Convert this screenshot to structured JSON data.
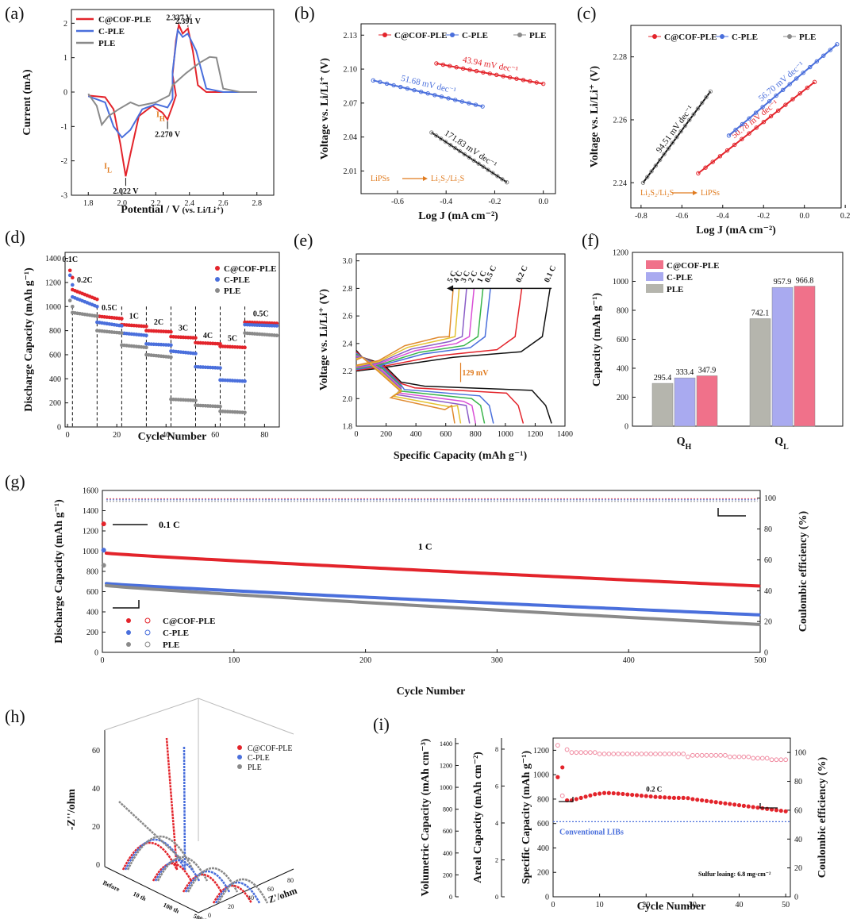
{
  "colors": {
    "cof": "#e3242b",
    "cple": "#4a6fdc",
    "ple": "#8a8a8a",
    "ann": "#e07b1f",
    "black": "#111111",
    "blue_dotted": "#4a6fdc"
  },
  "series_names": [
    "C@COF-PLE",
    "C-PLE",
    "PLE"
  ],
  "chart_data": [
    {
      "id": "a",
      "panel_label": "(a)",
      "type": "line",
      "xlabel": "Potential / V",
      "xlabel_suffix": " (vs. Li/Li⁺)",
      "ylabel": "Current (mA)",
      "xlim": [
        1.7,
        2.9
      ],
      "ylim": [
        -3,
        2.4
      ],
      "xticks": [
        1.8,
        2.0,
        2.2,
        2.4,
        2.6,
        2.8
      ],
      "yticks": [
        -3,
        -2,
        -1,
        0,
        1,
        2
      ],
      "series": [
        {
          "name": "C@COF-PLE",
          "points": [
            [
              1.8,
              -0.1
            ],
            [
              1.9,
              -0.15
            ],
            [
              1.95,
              -0.5
            ],
            [
              1.99,
              -1.5
            ],
            [
              2.022,
              -2.45
            ],
            [
              2.05,
              -1.8
            ],
            [
              2.1,
              -0.7
            ],
            [
              2.18,
              -0.4
            ],
            [
              2.24,
              -0.6
            ],
            [
              2.27,
              -0.8
            ],
            [
              2.3,
              -0.4
            ],
            [
              2.32,
              -0.1
            ],
            [
              2.3,
              0.5
            ],
            [
              2.32,
              1.5
            ],
            [
              2.337,
              1.95
            ],
            [
              2.36,
              1.7
            ],
            [
              2.391,
              1.85
            ],
            [
              2.42,
              1.2
            ],
            [
              2.45,
              0.2
            ],
            [
              2.5,
              0.0
            ],
            [
              2.6,
              0.0
            ],
            [
              2.8,
              0.0
            ]
          ]
        },
        {
          "name": "C-PLE",
          "points": [
            [
              1.8,
              -0.12
            ],
            [
              1.9,
              -0.3
            ],
            [
              1.95,
              -1.0
            ],
            [
              2.0,
              -1.32
            ],
            [
              2.05,
              -1.1
            ],
            [
              2.12,
              -0.5
            ],
            [
              2.2,
              -0.35
            ],
            [
              2.27,
              -0.45
            ],
            [
              2.3,
              -0.2
            ],
            [
              2.3,
              0.6
            ],
            [
              2.33,
              1.8
            ],
            [
              2.36,
              1.6
            ],
            [
              2.39,
              1.7
            ],
            [
              2.44,
              1.2
            ],
            [
              2.5,
              0.1
            ],
            [
              2.6,
              0.0
            ],
            [
              2.8,
              0.0
            ]
          ]
        },
        {
          "name": "PLE",
          "points": [
            [
              1.8,
              -0.05
            ],
            [
              1.85,
              -0.4
            ],
            [
              1.88,
              -0.95
            ],
            [
              1.92,
              -0.7
            ],
            [
              1.98,
              -0.5
            ],
            [
              2.05,
              -0.3
            ],
            [
              2.1,
              -0.4
            ],
            [
              2.2,
              -0.3
            ],
            [
              2.28,
              -0.1
            ],
            [
              2.3,
              0.2
            ],
            [
              2.38,
              0.55
            ],
            [
              2.46,
              0.85
            ],
            [
              2.52,
              1.02
            ],
            [
              2.56,
              1.0
            ],
            [
              2.6,
              0.1
            ],
            [
              2.7,
              0.0
            ],
            [
              2.8,
              0.0
            ]
          ]
        }
      ],
      "annotations": [
        {
          "text": "2.337 V",
          "x": 2.337,
          "y": 1.95
        },
        {
          "text": "2.391 V",
          "x": 2.391,
          "y": 1.85
        },
        {
          "text": "2.270 V",
          "x": 2.27,
          "y": -0.8
        },
        {
          "text": "2.022 V",
          "x": 2.022,
          "y": -2.45
        },
        {
          "text": "I",
          "sub": "L",
          "x": 1.95,
          "y": -2.0
        },
        {
          "text": "I",
          "sub": "H",
          "x": 2.26,
          "y": -0.5
        }
      ]
    },
    {
      "id": "b",
      "panel_label": "(b)",
      "type": "scatter",
      "xlabel": "Log J (mA cm⁻²)",
      "ylabel": "Voltage vs. Li/Li⁺ (V)",
      "xlim": [
        -0.75,
        0.05
      ],
      "ylim": [
        1.99,
        2.14
      ],
      "xticks": [
        -0.6,
        -0.4,
        -0.2,
        0.0
      ],
      "yticks": [
        2.01,
        2.04,
        2.07,
        2.1,
        2.13
      ],
      "series": [
        {
          "name": "C@COF-PLE",
          "x0": -0.44,
          "x1": 0.0,
          "y0": 2.105,
          "y1": 2.087,
          "slope_label": "43.94 mV dec⁻¹"
        },
        {
          "name": "C-PLE",
          "x0": -0.7,
          "x1": -0.25,
          "y0": 2.09,
          "y1": 2.067,
          "slope_label": "51.68 mV dec⁻¹"
        },
        {
          "name": "PLE",
          "x0": -0.46,
          "x1": -0.15,
          "y0": 2.044,
          "y1": 2.0,
          "slope_label": "171.83 mV dec⁻¹"
        }
      ],
      "note_from": "LiPSs",
      "note_to": "Li₂S₂/Li₂S"
    },
    {
      "id": "c",
      "panel_label": "(c)",
      "type": "scatter",
      "xlabel": "Log J (mA cm⁻²)",
      "ylabel": "Voltage vs. Li/Li⁺ (V)",
      "xlim": [
        -0.85,
        0.18
      ],
      "ylim": [
        2.232,
        2.29
      ],
      "xticks": [
        -0.8,
        -0.6,
        -0.4,
        -0.2,
        0.0,
        0.2
      ],
      "yticks": [
        2.24,
        2.26,
        2.28
      ],
      "series": [
        {
          "name": "C@COF-PLE",
          "x0": -0.52,
          "x1": 0.05,
          "y0": 2.243,
          "y1": 2.272,
          "slope_label": "50.78 mV dec⁻¹"
        },
        {
          "name": "C-PLE",
          "x0": -0.37,
          "x1": 0.16,
          "y0": 2.255,
          "y1": 2.284,
          "slope_label": "56.70 mV dec⁻¹"
        },
        {
          "name": "PLE",
          "x0": -0.79,
          "x1": -0.46,
          "y0": 2.24,
          "y1": 2.269,
          "slope_label": "94.51 mV dec⁻¹"
        }
      ],
      "note_from": "Li₂S₂/Li₂S",
      "note_to": "LiPSs"
    },
    {
      "id": "d",
      "panel_label": "(d)",
      "type": "scatter",
      "xlabel": "Cycle Number",
      "ylabel": "Discharge Capacity (mAh g⁻¹)",
      "xlim": [
        -1,
        86
      ],
      "ylim": [
        0,
        1450
      ],
      "xticks": [
        0,
        20,
        40,
        60,
        80
      ],
      "yticks": [
        0,
        200,
        400,
        600,
        800,
        1000,
        1200,
        1400
      ],
      "rates": [
        "0.1C",
        "0.2C",
        "0.5C",
        "1C",
        "2C",
        "3C",
        "4C",
        "5C",
        "0.5C"
      ],
      "rate_boundaries": [
        2,
        12,
        22,
        32,
        42,
        52,
        62,
        72
      ],
      "series": [
        {
          "name": "C@COF-PLE",
          "segments": [
            [
              1300,
              1240
            ],
            [
              1140,
              1060
            ],
            [
              920,
              900
            ],
            [
              850,
              835
            ],
            [
              800,
              790
            ],
            [
              750,
              740
            ],
            [
              700,
              690
            ],
            [
              670,
              660
            ],
            [
              870,
              860
            ]
          ]
        },
        {
          "name": "C-PLE",
          "segments": [
            [
              1260,
              1180
            ],
            [
              1080,
              1000
            ],
            [
              870,
              840
            ],
            [
              780,
              760
            ],
            [
              690,
              680
            ],
            [
              630,
              610
            ],
            [
              500,
              490
            ],
            [
              390,
              380
            ],
            [
              850,
              840
            ]
          ]
        },
        {
          "name": "PLE",
          "segments": [
            [
              1050,
              1000
            ],
            [
              950,
              920
            ],
            [
              800,
              780
            ],
            [
              680,
              660
            ],
            [
              600,
              580
            ],
            [
              230,
              220
            ],
            [
              180,
              170
            ],
            [
              130,
              120
            ],
            [
              780,
              760
            ]
          ]
        }
      ]
    },
    {
      "id": "e",
      "panel_label": "(e)",
      "type": "line",
      "xlabel": "Specific Capacity (mAh g⁻¹)",
      "ylabel": "Voltage vs. Li/Li⁺ (V)",
      "xlim": [
        0,
        1400
      ],
      "ylim": [
        1.8,
        3.05
      ],
      "xticks": [
        0,
        200,
        400,
        600,
        800,
        1000,
        1200,
        1400
      ],
      "yticks": [
        1.8,
        2.0,
        2.2,
        2.4,
        2.6,
        2.8,
        3.0
      ],
      "rates": [
        "0.1 C",
        "0.2 C",
        "0.5 C",
        "1 C",
        "2 C",
        "3 C",
        "4 C",
        "5 C"
      ],
      "discharge_end": [
        1310,
        1120,
        920,
        860,
        800,
        760,
        700,
        660
      ],
      "charge_end": [
        1300,
        1110,
        900,
        850,
        790,
        740,
        690,
        650
      ],
      "curve_colors": [
        "#111111",
        "#e3242b",
        "#4a6fdc",
        "#39b54a",
        "#d94fd6",
        "#8a5cc7",
        "#e3c230",
        "#e08a2f"
      ],
      "polarization_label": "129 mV"
    },
    {
      "id": "f",
      "panel_label": "(f)",
      "type": "bar",
      "ylabel": "Capacity (mAh g⁻¹)",
      "ylim": [
        0,
        1200
      ],
      "yticks": [
        0,
        200,
        400,
        600,
        800,
        1000,
        1200
      ],
      "categories": [
        "Q",
        "Q"
      ],
      "category_subs": [
        "H",
        "L"
      ],
      "series": [
        {
          "name": "PLE",
          "values": [
            295.4,
            742.1
          ]
        },
        {
          "name": "C-PLE",
          "values": [
            333.4,
            957.9
          ]
        },
        {
          "name": "C@COF-PLE",
          "values": [
            347.9,
            966.8
          ]
        }
      ],
      "value_labels": [
        [
          "295.4",
          "742.1"
        ],
        [
          "333.4",
          "957.9"
        ],
        [
          "347.9",
          "966.8"
        ]
      ],
      "bar_colors": [
        "#b5b5ad",
        "#a9aaf0",
        "#f0718a"
      ]
    },
    {
      "id": "g",
      "panel_label": "(g)",
      "type": "scatter",
      "xlabel": "Cycle Number",
      "ylabel": "Discharge Capacity (mAh g⁻¹)",
      "y2label": "Coulombic efficiency (%)",
      "xlim": [
        0,
        500
      ],
      "ylim": [
        0,
        1600
      ],
      "y2lim": [
        0,
        105
      ],
      "xticks": [
        0,
        100,
        200,
        300,
        400,
        500
      ],
      "yticks": [
        0,
        200,
        400,
        600,
        800,
        1000,
        1200,
        1400,
        1600
      ],
      "y2ticks": [
        0,
        20,
        40,
        60,
        80,
        100
      ],
      "rate_activation": "0.1 C",
      "rate_main": "1 C",
      "series": [
        {
          "name": "C@COF-PLE",
          "start": 980,
          "end": 655,
          "first": 1270,
          "ce": 99.5
        },
        {
          "name": "C-PLE",
          "start": 680,
          "end": 370,
          "first": 1010,
          "ce": 99.0
        },
        {
          "name": "PLE",
          "start": 660,
          "end": 275,
          "first": 860,
          "ce": 98.0
        }
      ]
    },
    {
      "id": "h",
      "panel_label": "(h)",
      "type": "line",
      "xlabel": "Z'/ohm",
      "ylabel": "-Z''/ohm",
      "zticks": [
        0,
        20,
        40,
        60
      ],
      "xticks": [
        0,
        20,
        40,
        60,
        80
      ],
      "states": [
        "Before",
        "10 th",
        "100 th",
        "500th"
      ]
    },
    {
      "id": "i",
      "panel_label": "(i)",
      "type": "scatter",
      "xlabel": "Cycle Number",
      "ylabel_vol": "Volumetric Capacity (mAh cm⁻³)",
      "ylabel_areal": "Areal Capacity (mAh cm⁻²)",
      "ylabel": "Specific Capacity (mAh g⁻¹)",
      "y2label": "Coulombic efficiency (%)",
      "xlim": [
        0,
        51
      ],
      "ylim": [
        0,
        1300
      ],
      "y2lim": [
        0,
        110
      ],
      "xticks": [
        0,
        10,
        20,
        30,
        40,
        50
      ],
      "yticks": [
        0,
        200,
        400,
        600,
        800,
        1000,
        1200
      ],
      "y2ticks": [
        0,
        20,
        40,
        60,
        80,
        100
      ],
      "vol_ticks": [
        0,
        200,
        400,
        600,
        800,
        1000,
        1200,
        1400
      ],
      "areal_ticks": [
        0,
        2,
        4,
        6,
        8
      ],
      "capacity": [
        980,
        1060,
        790,
        790,
        800,
        810,
        820,
        830,
        840,
        845,
        850,
        850,
        848,
        845,
        842,
        838,
        835,
        832,
        828,
        825,
        822,
        818,
        816,
        814,
        812,
        810,
        810,
        810,
        808,
        800,
        795,
        790,
        785,
        780,
        775,
        770,
        765,
        760,
        755,
        750,
        745,
        740,
        735,
        730,
        725,
        720,
        715,
        710,
        705,
        700
      ],
      "ce": [
        105,
        70,
        102,
        100,
        100,
        100,
        100,
        100,
        100,
        99,
        99,
        99,
        99,
        99,
        99,
        99,
        99,
        99,
        99,
        99,
        99,
        99,
        99,
        99,
        99,
        99,
        99,
        99,
        97,
        98,
        98,
        98,
        98,
        98,
        98,
        98,
        98,
        97,
        97,
        97,
        97,
        97,
        96,
        96,
        96,
        96,
        95,
        95,
        95,
        95
      ],
      "rate_label": "0.2 C",
      "reference_label": "Conventional LIBs",
      "reference_value": 615,
      "loading_label": "Sulfur loaing: 6.8 mg·cm⁻²"
    }
  ]
}
